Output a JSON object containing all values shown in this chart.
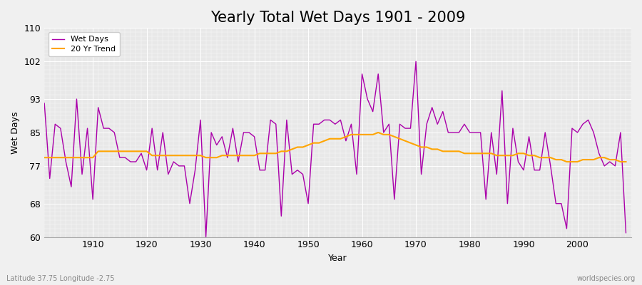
{
  "title": "Yearly Total Wet Days 1901 - 2009",
  "xlabel": "Year",
  "ylabel": "Wet Days",
  "subtitle": "Latitude 37.75 Longitude -2.75",
  "watermark": "worldspecies.org",
  "ylim": [
    60,
    110
  ],
  "yticks": [
    60,
    68,
    77,
    85,
    93,
    102,
    110
  ],
  "years": [
    1901,
    1902,
    1903,
    1904,
    1905,
    1906,
    1907,
    1908,
    1909,
    1910,
    1911,
    1912,
    1913,
    1914,
    1915,
    1916,
    1917,
    1918,
    1919,
    1920,
    1921,
    1922,
    1923,
    1924,
    1925,
    1926,
    1927,
    1928,
    1929,
    1930,
    1931,
    1932,
    1933,
    1934,
    1935,
    1936,
    1937,
    1938,
    1939,
    1940,
    1941,
    1942,
    1943,
    1944,
    1945,
    1946,
    1947,
    1948,
    1949,
    1950,
    1951,
    1952,
    1953,
    1954,
    1955,
    1956,
    1957,
    1958,
    1959,
    1960,
    1961,
    1962,
    1963,
    1964,
    1965,
    1966,
    1967,
    1968,
    1969,
    1970,
    1971,
    1972,
    1973,
    1974,
    1975,
    1976,
    1977,
    1978,
    1979,
    1980,
    1981,
    1982,
    1983,
    1984,
    1985,
    1986,
    1987,
    1988,
    1989,
    1990,
    1991,
    1992,
    1993,
    1994,
    1995,
    1996,
    1997,
    1998,
    1999,
    2000,
    2001,
    2002,
    2003,
    2004,
    2005,
    2006,
    2007,
    2008,
    2009
  ],
  "wet_days": [
    92,
    74,
    87,
    86,
    78,
    72,
    93,
    75,
    86,
    69,
    91,
    86,
    86,
    85,
    79,
    79,
    78,
    78,
    80,
    76,
    86,
    76,
    85,
    75,
    78,
    77,
    77,
    68,
    76,
    88,
    60,
    85,
    82,
    84,
    79,
    86,
    78,
    85,
    85,
    84,
    76,
    76,
    88,
    87,
    65,
    88,
    75,
    76,
    75,
    68,
    87,
    87,
    88,
    88,
    87,
    88,
    83,
    87,
    75,
    99,
    93,
    90,
    99,
    85,
    87,
    69,
    87,
    86,
    86,
    102,
    75,
    87,
    91,
    87,
    90,
    85,
    85,
    85,
    87,
    85,
    85,
    85,
    69,
    85,
    75,
    95,
    68,
    86,
    78,
    76,
    84,
    76,
    76,
    85,
    77,
    68,
    68,
    62,
    86,
    85,
    87,
    88,
    85,
    80,
    77,
    78,
    77,
    85,
    61
  ],
  "trend": [
    79.0,
    79.0,
    79.0,
    79.0,
    79.0,
    79.0,
    79.0,
    79.0,
    79.0,
    79.0,
    80.5,
    80.5,
    80.5,
    80.5,
    80.5,
    80.5,
    80.5,
    80.5,
    80.5,
    80.5,
    79.5,
    79.5,
    79.5,
    79.5,
    79.5,
    79.5,
    79.5,
    79.5,
    79.5,
    79.5,
    79.0,
    79.0,
    79.0,
    79.5,
    79.5,
    79.5,
    79.5,
    79.5,
    79.5,
    79.5,
    80.0,
    80.0,
    80.0,
    80.0,
    80.5,
    80.5,
    81.0,
    81.5,
    81.5,
    82.0,
    82.5,
    82.5,
    83.0,
    83.5,
    83.5,
    83.5,
    84.0,
    84.5,
    84.5,
    84.5,
    84.5,
    84.5,
    85.0,
    84.5,
    84.5,
    84.0,
    83.5,
    83.0,
    82.5,
    82.0,
    81.5,
    81.5,
    81.0,
    81.0,
    80.5,
    80.5,
    80.5,
    80.5,
    80.0,
    80.0,
    80.0,
    80.0,
    80.0,
    80.0,
    79.5,
    79.5,
    79.5,
    79.5,
    80.0,
    80.0,
    79.5,
    79.5,
    79.0,
    79.0,
    79.0,
    78.5,
    78.5,
    78.0,
    78.0,
    78.0,
    78.5,
    78.5,
    78.5,
    79.0,
    79.0,
    78.5,
    78.5,
    78.0,
    78.0
  ],
  "wet_days_color": "#aa00aa",
  "trend_color": "#ffa500",
  "bg_color": "#f0f0f0",
  "plot_bg_color": "#e8e8e8",
  "grid_color": "#ffffff",
  "title_fontsize": 15,
  "label_fontsize": 9,
  "tick_fontsize": 9,
  "legend_label_wet": "Wet Days",
  "legend_label_trend": "20 Yr Trend"
}
